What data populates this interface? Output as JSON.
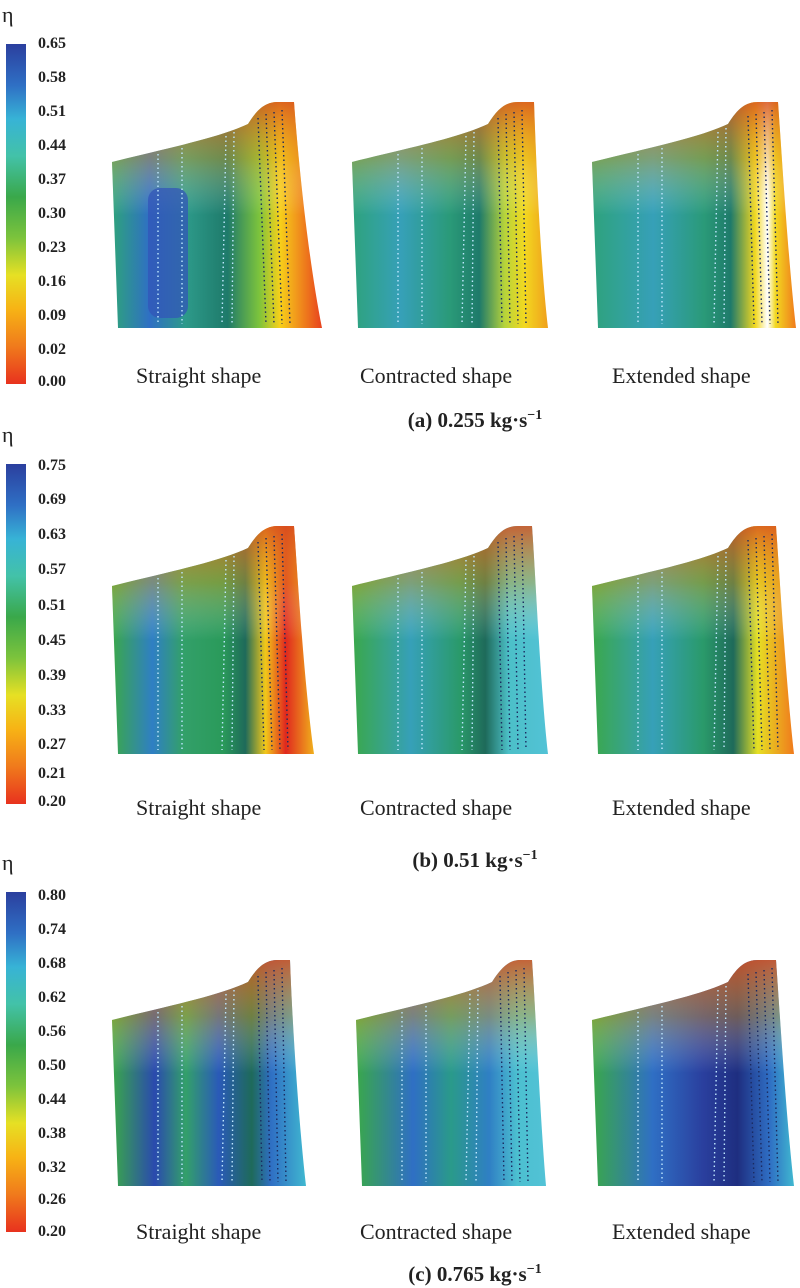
{
  "panels": [
    {
      "id": "a",
      "title_prefix": "(a) 0.255 kg·s",
      "title_exp": "−1",
      "colorbar_symbol": "η",
      "ticks": [
        "0.65",
        "0.58",
        "0.51",
        "0.44",
        "0.37",
        "0.30",
        "0.23",
        "0.16",
        "0.09",
        "0.02",
        "0.00"
      ],
      "captions": [
        "Straight shape",
        "Contracted shape",
        "Extended shape"
      ]
    },
    {
      "id": "b",
      "title_prefix": "(b) 0.51 kg·s",
      "title_exp": "−1",
      "colorbar_symbol": "η",
      "ticks": [
        "0.75",
        "0.69",
        "0.63",
        "0.57",
        "0.51",
        "0.45",
        "0.39",
        "0.33",
        "0.27",
        "0.21",
        "0.20"
      ],
      "captions": [
        "Straight shape",
        "Contracted shape",
        "Extended shape"
      ]
    },
    {
      "id": "c",
      "title_prefix": "(c) 0.765 kg·s",
      "title_exp": "−1",
      "colorbar_symbol": "η",
      "ticks": [
        "0.80",
        "0.74",
        "0.68",
        "0.62",
        "0.56",
        "0.50",
        "0.44",
        "0.38",
        "0.32",
        "0.26",
        "0.20"
      ],
      "captions": [
        "Straight shape",
        "Contracted shape",
        "Extended shape"
      ]
    }
  ],
  "colors": {
    "colormap": [
      "#2b3f9e",
      "#2f6fc4",
      "#37b3d6",
      "#43c2a8",
      "#3aa84a",
      "#7cc33c",
      "#e6e024",
      "#f7b315",
      "#f07a1c",
      "#e8321e"
    ]
  }
}
